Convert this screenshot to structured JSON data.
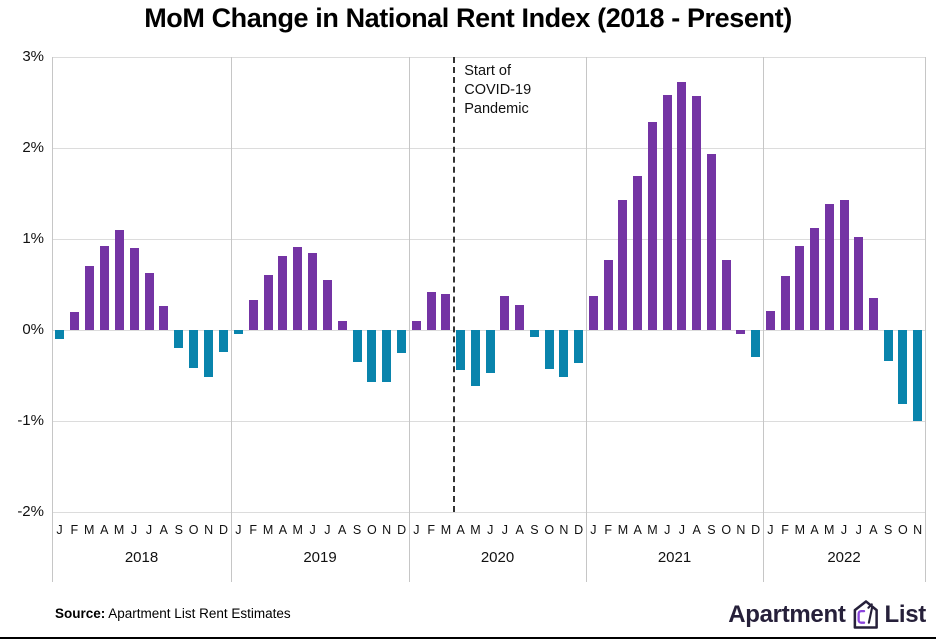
{
  "title": "MoM Change in National Rent Index (2018 - Present)",
  "chart_data": {
    "type": "bar",
    "title": "MoM Change in National Rent Index (2018 - Present)",
    "unit": "%",
    "ylim": [
      -2,
      3
    ],
    "ytick_values": [
      3,
      2,
      1,
      0,
      -1,
      -2
    ],
    "ytick_labels": [
      "3%",
      "2%",
      "1%",
      "0%",
      "-1%",
      "-2%"
    ],
    "grid": "horizontal-light, vertical year separators",
    "legend": "none",
    "colors": {
      "positive": "#7434A4",
      "negative": "#0984AC"
    },
    "years": [
      {
        "year": "2018",
        "months": [
          "J",
          "F",
          "M",
          "A",
          "M",
          "J",
          "J",
          "A",
          "S",
          "O",
          "N",
          "D"
        ],
        "values": [
          -0.1,
          0.2,
          0.7,
          0.92,
          1.1,
          0.9,
          0.63,
          0.26,
          -0.2,
          -0.42,
          -0.52,
          -0.24
        ]
      },
      {
        "year": "2019",
        "months": [
          "J",
          "F",
          "M",
          "A",
          "M",
          "J",
          "J",
          "A",
          "S",
          "O",
          "N",
          "D"
        ],
        "values": [
          -0.04,
          0.33,
          0.6,
          0.81,
          0.91,
          0.85,
          0.55,
          0.1,
          -0.35,
          -0.57,
          -0.57,
          -0.25
        ]
      },
      {
        "year": "2020",
        "months": [
          "J",
          "F",
          "M",
          "A",
          "M",
          "J",
          "J",
          "A",
          "S",
          "O",
          "N",
          "D"
        ],
        "values": [
          0.1,
          0.42,
          0.4,
          -0.44,
          -0.62,
          -0.47,
          0.37,
          0.28,
          -0.08,
          -0.43,
          -0.52,
          -0.36
        ]
      },
      {
        "year": "2021",
        "months": [
          "J",
          "F",
          "M",
          "A",
          "M",
          "J",
          "J",
          "A",
          "S",
          "O",
          "N",
          "D"
        ],
        "values": [
          0.37,
          0.77,
          1.43,
          1.69,
          2.29,
          2.58,
          2.73,
          2.57,
          1.94,
          0.77,
          -0.04,
          -0.3
        ]
      },
      {
        "year": "2022",
        "months": [
          "J",
          "F",
          "M",
          "A",
          "M",
          "J",
          "J",
          "A",
          "S",
          "O",
          "N"
        ],
        "values": [
          0.21,
          0.59,
          0.92,
          1.12,
          1.38,
          1.43,
          1.02,
          0.35,
          -0.34,
          -0.81,
          -1.0
        ]
      }
    ],
    "color_overrides": [
      {
        "year": "2021",
        "month_index": 10,
        "color": "#7434A4"
      }
    ],
    "annotation": {
      "lines": [
        "Start of",
        "COVID-19",
        "Pandemic"
      ],
      "line_position": "vertical dashed line between Mar 2020 and Apr 2020"
    }
  },
  "footer": {
    "source_label": "Source:",
    "source_text": "Apartment List Rent Estimates",
    "logo_text_1": "Apartment",
    "logo_text_2": "List"
  }
}
